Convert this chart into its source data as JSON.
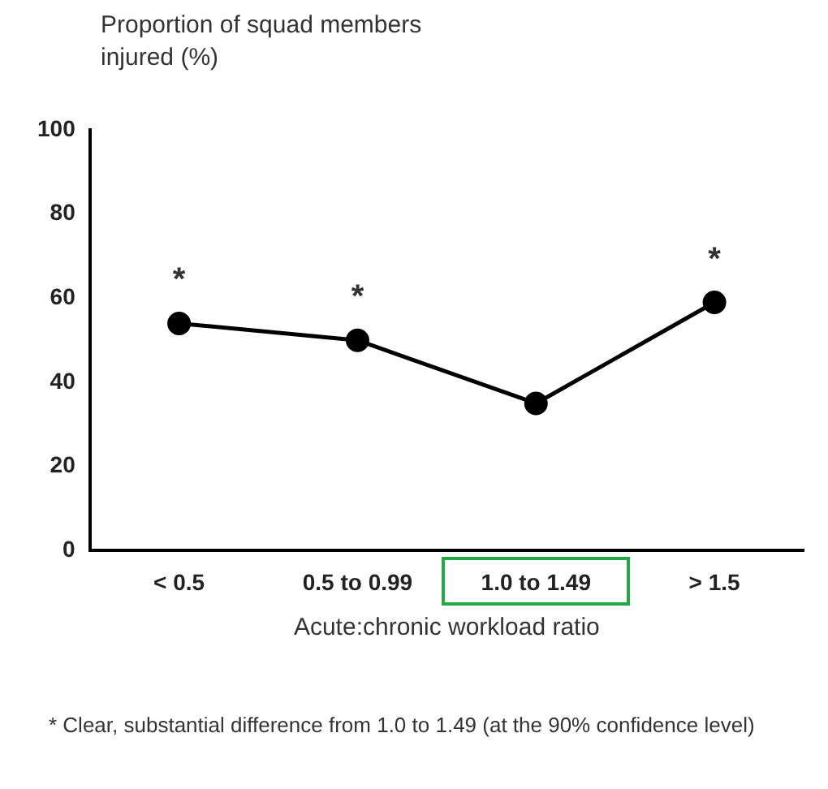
{
  "chart_data": {
    "type": "line",
    "ylabel": "Proportion of squad members injured (%)",
    "xlabel": "Acute:chronic workload ratio",
    "categories": [
      "< 0.5",
      "0.5 to 0.99",
      "1.0 to 1.49",
      "> 1.5"
    ],
    "series": [
      {
        "color": "#000000",
        "values": [
          54,
          50,
          35,
          59
        ]
      }
    ],
    "ylim": [
      0,
      100
    ],
    "yticks": [
      0,
      20,
      40,
      60,
      80,
      100
    ],
    "grid": false,
    "legend": false,
    "marker": "circle",
    "line_style": "solid",
    "annotations": [
      {
        "text": "*",
        "x": "< 0.5",
        "y": 54
      },
      {
        "text": "*",
        "x": "0.5 to 0.99",
        "y": 50
      },
      {
        "text": "*",
        "x": "> 1.5",
        "y": 59
      },
      "*   Clear, substantial difference from 1.0 to 1.49 (at the 90% confidence level)"
    ]
  }
}
